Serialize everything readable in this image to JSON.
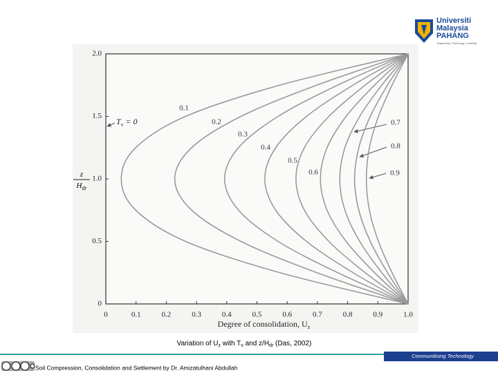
{
  "slide": {
    "logo": [
      "Universiti",
      "Malaysia",
      "PAHANG"
    ],
    "tagline": "Engineering • Technology • Creativity",
    "caption": [
      "Variation of U",
      "z",
      " with T",
      "v",
      " and z/H",
      "dr",
      " (Das, 2002)"
    ],
    "footer": "Soil Compression, Consolidation and Settlement by Dr. Amizatulhani Abdullah",
    "band": "Communitising Technology"
  },
  "chart_data": {
    "type": "line",
    "xlabel": [
      "Degree of consolidation, U",
      "z"
    ],
    "ylabel": [
      "z",
      "H",
      "dr"
    ],
    "annotation": [
      "T",
      "v",
      " = 0"
    ],
    "xlim": [
      0,
      1
    ],
    "ylim": [
      0,
      2
    ],
    "xticks": [
      0,
      0.1,
      0.2,
      0.3,
      0.4,
      0.5,
      0.6,
      0.7,
      0.8,
      0.9,
      {
        "value": 1,
        "label": "1.0"
      }
    ],
    "yticks": [
      0,
      0.5,
      {
        "value": 1,
        "label": "1.0"
      },
      1.5,
      {
        "value": 2,
        "label": "2.0"
      }
    ],
    "grid": false,
    "y": [
      0,
      0.25,
      0.5,
      0.75,
      1,
      1.25,
      1.5,
      1.75,
      2
    ],
    "series": [
      {
        "name": "0.1",
        "color": "#9a9a9a",
        "x": [
          1,
          0.576,
          0.264,
          0.099,
          0.051,
          0.099,
          0.264,
          0.576,
          1
        ]
      },
      {
        "name": "0.2",
        "color": "#9a9a9a",
        "x": [
          1,
          0.698,
          0.447,
          0.284,
          0.228,
          0.284,
          0.447,
          0.698,
          1
        ]
      },
      {
        "name": "0.3",
        "color": "#9a9a9a",
        "x": [
          1,
          0.767,
          0.57,
          0.439,
          0.393,
          0.439,
          0.57,
          0.767,
          1
        ]
      },
      {
        "name": "0.4",
        "color": "#9a9a9a",
        "x": [
          1,
          0.818,
          0.664,
          0.562,
          0.526,
          0.562,
          0.664,
          0.818,
          1
        ]
      },
      {
        "name": "0.5",
        "color": "#9a9a9a",
        "x": [
          1,
          0.858,
          0.738,
          0.657,
          0.629,
          0.657,
          0.738,
          0.858,
          1
        ]
      },
      {
        "name": "0.6",
        "color": "#9a9a9a",
        "x": [
          1,
          0.889,
          0.795,
          0.732,
          0.71,
          0.732,
          0.795,
          0.889,
          1
        ]
      },
      {
        "name": "0.7",
        "color": "#9a9a9a",
        "x": [
          1,
          0.913,
          0.84,
          0.791,
          0.774,
          0.791,
          0.84,
          0.913,
          1
        ]
      },
      {
        "name": "0.8",
        "color": "#9a9a9a",
        "x": [
          1,
          0.932,
          0.875,
          0.837,
          0.823,
          0.837,
          0.875,
          0.932,
          1
        ]
      },
      {
        "name": "0.9",
        "color": "#9a9a9a",
        "x": [
          1,
          0.947,
          0.902,
          0.872,
          0.862,
          0.872,
          0.902,
          0.947,
          1
        ]
      }
    ]
  }
}
